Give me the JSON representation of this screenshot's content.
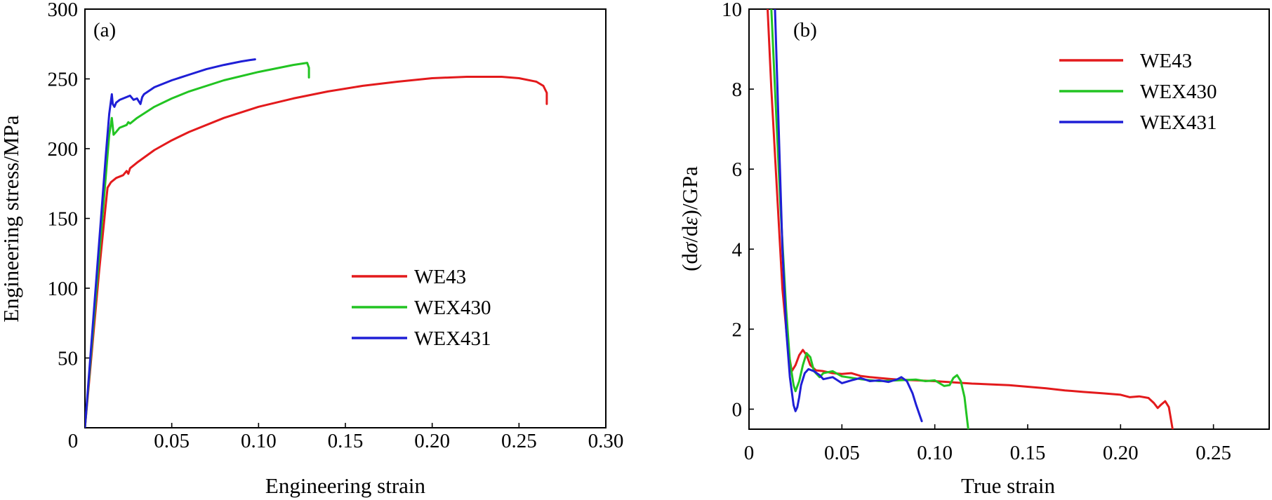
{
  "colors": {
    "WE43": "#e31a1c",
    "WEX430": "#22c422",
    "WEX431": "#1f1fd6"
  },
  "chart_data": [
    {
      "type": "line",
      "panel_label": "(a)",
      "xlabel": "Engineering strain",
      "ylabel": "Engineering stress/MPa",
      "xlim": [
        0,
        0.3
      ],
      "ylim": [
        0,
        300
      ],
      "xticks": [
        0.05,
        0.1,
        0.15,
        0.2,
        0.25,
        0.3
      ],
      "xtick_labels": [
        "0.05",
        "0.10",
        "0.15",
        "0.20",
        "0.25",
        "0.30"
      ],
      "yticks": [
        50,
        100,
        150,
        200,
        250,
        300
      ],
      "ytick_labels": [
        "50",
        "100",
        "150",
        "200",
        "250",
        "300"
      ],
      "origin_label": "0",
      "grid": false,
      "legend": "bottom-right",
      "series": [
        {
          "name": "WE43",
          "x": [
            0,
            0.004,
            0.008,
            0.012,
            0.013,
            0.015,
            0.018,
            0.022,
            0.024,
            0.025,
            0.026,
            0.03,
            0.04,
            0.05,
            0.06,
            0.08,
            0.1,
            0.12,
            0.14,
            0.16,
            0.18,
            0.2,
            0.22,
            0.24,
            0.25,
            0.26,
            0.264,
            0.266,
            0.266
          ],
          "y": [
            0,
            55,
            110,
            160,
            172,
            176,
            179,
            181,
            184,
            182,
            186,
            190,
            199,
            206,
            212,
            222,
            230,
            236,
            241,
            245,
            248,
            250.5,
            251.5,
            251.5,
            250.5,
            248,
            245,
            240,
            232
          ]
        },
        {
          "name": "WEX430",
          "x": [
            0,
            0.004,
            0.008,
            0.012,
            0.014,
            0.0155,
            0.0165,
            0.018,
            0.02,
            0.024,
            0.025,
            0.026,
            0.03,
            0.04,
            0.05,
            0.06,
            0.08,
            0.1,
            0.12,
            0.128,
            0.129,
            0.129
          ],
          "y": [
            0,
            60,
            120,
            180,
            210,
            222,
            210,
            212,
            215,
            217,
            219,
            218,
            222,
            230,
            236,
            241,
            249,
            255,
            260,
            261.5,
            258,
            251
          ]
        },
        {
          "name": "WEX431",
          "x": [
            0,
            0.004,
            0.008,
            0.012,
            0.014,
            0.0155,
            0.016,
            0.017,
            0.018,
            0.02,
            0.024,
            0.026,
            0.028,
            0.03,
            0.032,
            0.033,
            0.034,
            0.04,
            0.05,
            0.06,
            0.07,
            0.08,
            0.09,
            0.095,
            0.098
          ],
          "y": [
            0,
            65,
            130,
            195,
            225,
            239,
            232,
            230,
            233,
            235,
            237,
            238,
            235,
            236,
            232,
            237,
            239,
            244,
            249,
            253,
            257,
            260,
            262.5,
            263.5,
            264
          ]
        }
      ]
    },
    {
      "type": "line",
      "panel_label": "(b)",
      "xlabel": "True strain",
      "ylabel_prefix": "(d",
      "ylabel_sigma": "σ",
      "ylabel_mid": "/d",
      "ylabel_eps": "ε",
      "ylabel_suffix": ")/GPa",
      "xlim": [
        0,
        0.28
      ],
      "ylim": [
        -0.5,
        10
      ],
      "xticks": [
        0.05,
        0.1,
        0.15,
        0.2,
        0.25
      ],
      "xtick_labels": [
        "0.05",
        "0.10",
        "0.15",
        "0.20",
        "0.25"
      ],
      "yticks": [
        0,
        2,
        4,
        6,
        8,
        10
      ],
      "ytick_labels": [
        "0",
        "2",
        "4",
        "6",
        "8",
        "10"
      ],
      "origin_label": "0",
      "grid": false,
      "legend": "top-right",
      "series": [
        {
          "name": "WE43",
          "x": [
            0.01,
            0.012,
            0.015,
            0.018,
            0.021,
            0.023,
            0.025,
            0.027,
            0.029,
            0.031,
            0.033,
            0.036,
            0.04,
            0.045,
            0.05,
            0.055,
            0.06,
            0.065,
            0.07,
            0.08,
            0.09,
            0.1,
            0.11,
            0.12,
            0.13,
            0.14,
            0.15,
            0.16,
            0.17,
            0.18,
            0.19,
            0.2,
            0.205,
            0.21,
            0.215,
            0.218,
            0.22,
            0.222,
            0.224,
            0.226,
            0.228
          ],
          "y": [
            10,
            8,
            5.5,
            3,
            1.5,
            0.95,
            1.1,
            1.35,
            1.48,
            1.35,
            1.1,
            0.97,
            0.95,
            0.9,
            0.88,
            0.9,
            0.83,
            0.8,
            0.78,
            0.74,
            0.72,
            0.7,
            0.67,
            0.64,
            0.62,
            0.6,
            0.56,
            0.52,
            0.47,
            0.43,
            0.4,
            0.36,
            0.3,
            0.32,
            0.28,
            0.15,
            0.03,
            0.12,
            0.2,
            0.05,
            -0.5
          ]
        },
        {
          "name": "WEX430",
          "x": [
            0.012,
            0.014,
            0.017,
            0.02,
            0.022,
            0.024,
            0.025,
            0.027,
            0.029,
            0.031,
            0.033,
            0.035,
            0.038,
            0.04,
            0.045,
            0.05,
            0.06,
            0.07,
            0.08,
            0.09,
            0.095,
            0.1,
            0.105,
            0.108,
            0.11,
            0.112,
            0.114,
            0.116,
            0.117,
            0.118
          ],
          "y": [
            10,
            8,
            5,
            2.5,
            1.2,
            0.6,
            0.45,
            0.7,
            1.1,
            1.4,
            1.3,
            0.95,
            0.8,
            0.9,
            0.95,
            0.82,
            0.75,
            0.7,
            0.72,
            0.74,
            0.7,
            0.72,
            0.58,
            0.6,
            0.78,
            0.85,
            0.7,
            0.3,
            -0.1,
            -0.5
          ]
        },
        {
          "name": "WEX431",
          "x": [
            0.014,
            0.016,
            0.018,
            0.02,
            0.022,
            0.024,
            0.025,
            0.026,
            0.027,
            0.028,
            0.03,
            0.032,
            0.035,
            0.038,
            0.04,
            0.045,
            0.05,
            0.055,
            0.06,
            0.065,
            0.07,
            0.075,
            0.08,
            0.082,
            0.085,
            0.088,
            0.09,
            0.093
          ],
          "y": [
            10,
            7,
            4,
            2,
            0.8,
            0.1,
            -0.05,
            0.05,
            0.3,
            0.6,
            0.9,
            1.0,
            0.95,
            0.85,
            0.75,
            0.8,
            0.65,
            0.72,
            0.78,
            0.7,
            0.72,
            0.68,
            0.75,
            0.8,
            0.7,
            0.4,
            0.1,
            -0.3
          ]
        }
      ]
    }
  ]
}
